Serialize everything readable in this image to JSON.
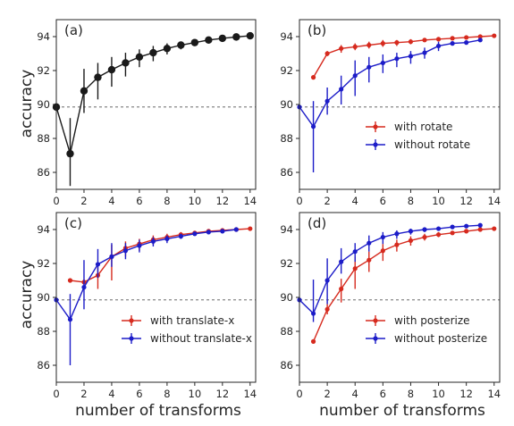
{
  "figure": {
    "ylabel": "accuracy",
    "xlabel": "number of transforms"
  },
  "chart_data": [
    {
      "panel": "(a)",
      "type": "line",
      "xlim": [
        0,
        14.4
      ],
      "ylim": [
        85,
        95
      ],
      "xticks": [
        0,
        2,
        4,
        6,
        8,
        10,
        12,
        14
      ],
      "yticks": [
        86,
        88,
        90,
        92,
        94
      ],
      "baseline": 89.85,
      "series": [
        {
          "color": "#1a1a1a",
          "marker_size": 4.2,
          "x": [
            0,
            1,
            2,
            3,
            4,
            5,
            6,
            7,
            8,
            9,
            10,
            11,
            12,
            13,
            14
          ],
          "y": [
            89.85,
            87.1,
            90.8,
            91.6,
            92.05,
            92.45,
            92.8,
            93.05,
            93.3,
            93.5,
            93.65,
            93.8,
            93.9,
            93.98,
            94.05
          ],
          "err_low": [
            0,
            1.9,
            1.3,
            1.3,
            1.0,
            0.8,
            0.6,
            0.5,
            0.35,
            0.25,
            0.15,
            0.1,
            0.08,
            0.05,
            0.05
          ],
          "err_high": [
            0,
            2.1,
            1.3,
            0.85,
            0.75,
            0.6,
            0.45,
            0.4,
            0.3,
            0.2,
            0.12,
            0.1,
            0.08,
            0.05,
            0.05
          ]
        }
      ]
    },
    {
      "panel": "(b)",
      "type": "line",
      "xlim": [
        0,
        14.4
      ],
      "ylim": [
        85,
        95
      ],
      "xticks": [
        0,
        2,
        4,
        6,
        8,
        10,
        12,
        14
      ],
      "yticks": [
        86,
        88,
        90,
        92,
        94
      ],
      "baseline": 89.85,
      "legend": "center-right",
      "series": [
        {
          "name": "with rotate",
          "color": "#d62a1e",
          "marker_size": 2.6,
          "x": [
            1,
            2,
            3,
            4,
            5,
            6,
            7,
            8,
            9,
            10,
            11,
            12,
            13,
            14
          ],
          "y": [
            91.6,
            93.0,
            93.3,
            93.4,
            93.5,
            93.6,
            93.65,
            93.7,
            93.8,
            93.85,
            93.9,
            93.95,
            94.0,
            94.05
          ],
          "err_low": [
            0,
            0.15,
            0.25,
            0.2,
            0.2,
            0.2,
            0.2,
            0.15,
            0.1,
            0.1,
            0.05,
            0.05,
            0.05,
            0.05
          ],
          "err_high": [
            0,
            0.15,
            0.2,
            0.2,
            0.2,
            0.2,
            0.15,
            0.15,
            0.1,
            0.1,
            0.05,
            0.05,
            0.05,
            0.05
          ]
        },
        {
          "name": "without rotate",
          "color": "#1c1cc8",
          "marker_size": 2.6,
          "x": [
            0,
            1,
            2,
            3,
            4,
            5,
            6,
            7,
            8,
            9,
            10,
            11,
            12,
            13
          ],
          "y": [
            89.85,
            88.7,
            90.2,
            90.9,
            91.7,
            92.2,
            92.45,
            92.7,
            92.85,
            93.05,
            93.45,
            93.6,
            93.65,
            93.8
          ],
          "err_low": [
            0,
            2.7,
            0.8,
            0.9,
            1.2,
            0.9,
            0.6,
            0.5,
            0.45,
            0.35,
            0.3,
            0.1,
            0.1,
            0.05
          ],
          "err_high": [
            0,
            1.5,
            0.8,
            0.8,
            0.9,
            0.6,
            0.5,
            0.35,
            0.3,
            0.3,
            0.25,
            0.1,
            0.1,
            0.05
          ]
        }
      ]
    },
    {
      "panel": "(c)",
      "type": "line",
      "xlim": [
        0,
        14.4
      ],
      "ylim": [
        85,
        95
      ],
      "xticks": [
        0,
        2,
        4,
        6,
        8,
        10,
        12,
        14
      ],
      "yticks": [
        86,
        88,
        90,
        92,
        94
      ],
      "baseline": 89.85,
      "legend": "lower-right",
      "series": [
        {
          "name": "with translate-x",
          "color": "#d62a1e",
          "marker_size": 2.6,
          "x": [
            1,
            2,
            3,
            4,
            5,
            6,
            7,
            8,
            9,
            10,
            11,
            12,
            13,
            14
          ],
          "y": [
            91.0,
            90.9,
            91.3,
            92.4,
            92.9,
            93.15,
            93.4,
            93.55,
            93.7,
            93.8,
            93.9,
            93.95,
            94.0,
            94.05
          ],
          "err_low": [
            0,
            0.15,
            0.8,
            1.4,
            0.5,
            0.4,
            0.3,
            0.25,
            0.15,
            0.1,
            0.1,
            0.05,
            0.05,
            0.05
          ],
          "err_high": [
            0,
            0.15,
            0.5,
            0.7,
            0.4,
            0.3,
            0.25,
            0.2,
            0.15,
            0.1,
            0.1,
            0.05,
            0.05,
            0.05
          ]
        },
        {
          "name": "without translate-x",
          "color": "#1c1cc8",
          "marker_size": 2.6,
          "x": [
            0,
            1,
            2,
            3,
            4,
            5,
            6,
            7,
            8,
            9,
            10,
            11,
            12,
            13
          ],
          "y": [
            89.85,
            88.7,
            90.6,
            91.95,
            92.4,
            92.75,
            93.05,
            93.3,
            93.45,
            93.6,
            93.75,
            93.85,
            93.9,
            94.0
          ],
          "err_low": [
            0,
            2.7,
            1.3,
            0.8,
            0.6,
            0.5,
            0.4,
            0.3,
            0.25,
            0.15,
            0.1,
            0.1,
            0.05,
            0.05
          ],
          "err_high": [
            0,
            1.5,
            1.6,
            0.9,
            0.8,
            0.45,
            0.35,
            0.25,
            0.2,
            0.15,
            0.1,
            0.1,
            0.05,
            0.05
          ]
        }
      ]
    },
    {
      "panel": "(d)",
      "type": "line",
      "xlim": [
        0,
        14.4
      ],
      "ylim": [
        85,
        95
      ],
      "xticks": [
        0,
        2,
        4,
        6,
        8,
        10,
        12,
        14
      ],
      "yticks": [
        86,
        88,
        90,
        92,
        94
      ],
      "baseline": 89.85,
      "legend": "lower-right",
      "series": [
        {
          "name": "with posterize",
          "color": "#d62a1e",
          "marker_size": 2.6,
          "x": [
            1,
            2,
            3,
            4,
            5,
            6,
            7,
            8,
            9,
            10,
            11,
            12,
            13,
            14
          ],
          "y": [
            87.4,
            89.3,
            90.5,
            91.7,
            92.2,
            92.75,
            93.1,
            93.35,
            93.55,
            93.7,
            93.8,
            93.9,
            94.0,
            94.05
          ],
          "err_low": [
            0,
            0.3,
            0.8,
            1.2,
            0.7,
            0.6,
            0.4,
            0.3,
            0.2,
            0.15,
            0.1,
            0.05,
            0.05,
            0.05
          ],
          "err_high": [
            0,
            0.3,
            0.6,
            0.7,
            0.5,
            0.4,
            0.3,
            0.25,
            0.2,
            0.15,
            0.1,
            0.05,
            0.05,
            0.05
          ]
        },
        {
          "name": "without posterize",
          "color": "#1c1cc8",
          "marker_size": 2.6,
          "x": [
            0,
            1,
            2,
            3,
            4,
            5,
            6,
            7,
            8,
            9,
            10,
            11,
            12,
            13
          ],
          "y": [
            89.85,
            89.05,
            91.0,
            92.1,
            92.7,
            93.2,
            93.55,
            93.75,
            93.9,
            94.0,
            94.05,
            94.15,
            94.2,
            94.25
          ],
          "err_low": [
            0,
            0.5,
            1.4,
            0.7,
            0.6,
            0.5,
            0.4,
            0.3,
            0.2,
            0.15,
            0.1,
            0.1,
            0.05,
            0.05
          ],
          "err_high": [
            0,
            2.0,
            1.3,
            0.8,
            0.5,
            0.45,
            0.3,
            0.2,
            0.15,
            0.1,
            0.1,
            0.1,
            0.05,
            0.05
          ]
        }
      ]
    }
  ]
}
